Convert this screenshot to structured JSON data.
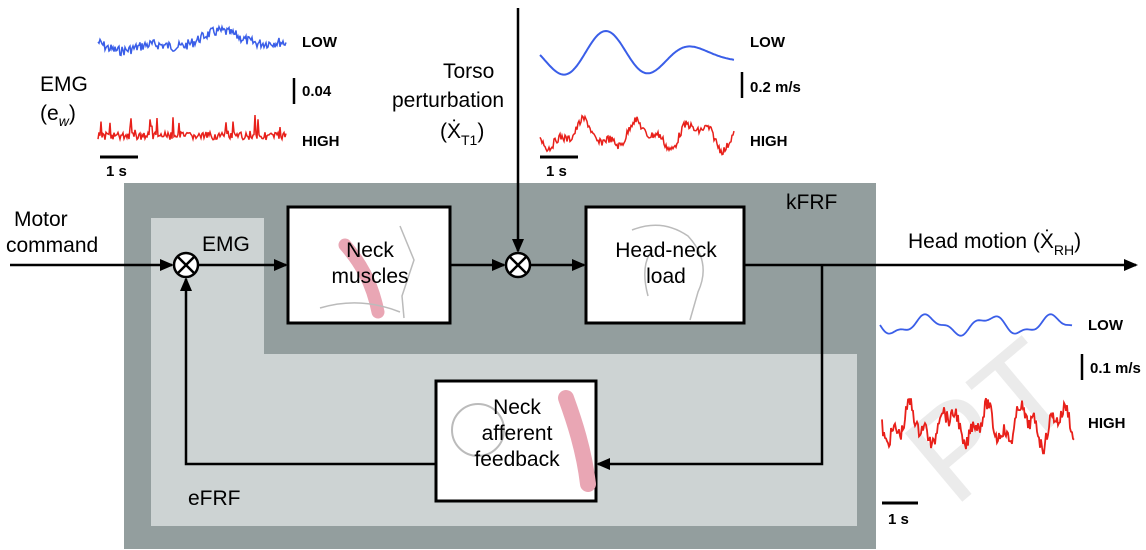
{
  "labels": {
    "emg_title": "EMG",
    "emg_sym": "(e",
    "emg_sub": "w",
    "emg_close": ")",
    "low": "LOW",
    "high": "HIGH",
    "emg_scale": "0.04",
    "time_scale": "1 s",
    "torso_line1": "Torso",
    "torso_line2": "perturbation",
    "torso_sym": "(Ẋ",
    "torso_sub": "T1",
    "torso_close": ")",
    "torso_scale": "0.2 m/s",
    "motor_line1": "Motor",
    "motor_line2": "command",
    "emg_node": "EMG",
    "kfrf": "kFRF",
    "efrf": "eFRF",
    "neck_muscles_1": "Neck",
    "neck_muscles_2": "muscles",
    "headneck_1": "Head-neck",
    "headneck_2": "load",
    "afferent_1": "Neck",
    "afferent_2": "afferent",
    "afferent_3": "feedback",
    "head_motion": "Head motion (Ẋ",
    "head_sub": "RH",
    "head_close": ")",
    "head_scale": "0.1 m/s",
    "watermark": "PT"
  },
  "colors": {
    "low_trace": "#3a5ee8",
    "high_trace": "#e8201a",
    "outer_panel": "#939e9e",
    "inner_panel": "#cdd3d3",
    "muscle_pink": "#e9a6b4"
  }
}
